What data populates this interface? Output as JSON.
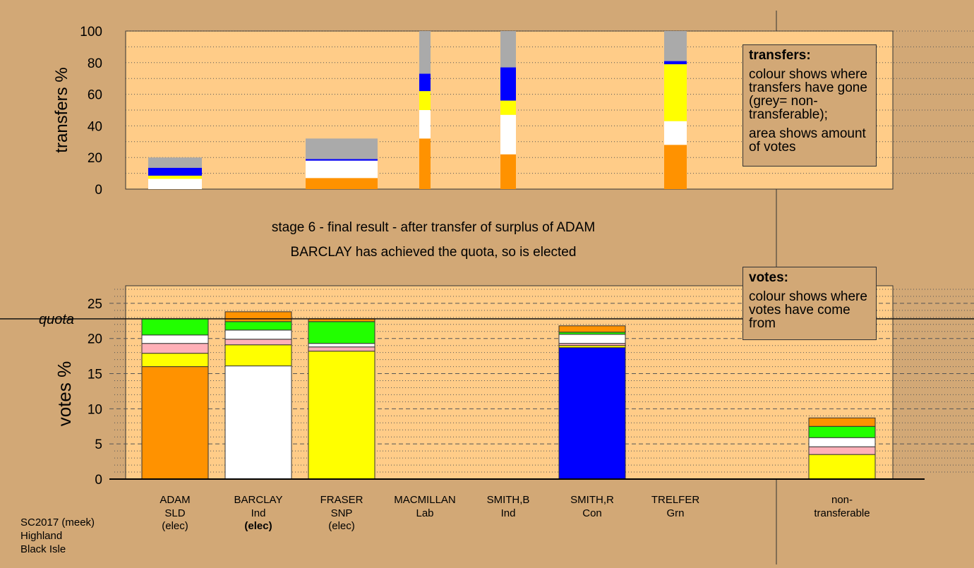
{
  "palette": {
    "background": "#d2a876",
    "plot_bg": "#ffcc88",
    "SLD": "#ff9200",
    "Ind": "#ffffff",
    "SNP": "#ffff00",
    "Con": "#0000ff",
    "Grn": "#22ff00",
    "other": "#ffb0b8",
    "nontransferable": "#aaaaaa"
  },
  "stage_info": {
    "line1": "stage 6 - final result - after transfer of surplus of ADAM",
    "line2": "BARCLAY has achieved the quota, so is elected"
  },
  "legend_transfers": {
    "title": "transfers:",
    "text1": "colour shows where transfers have gone (grey= non-transferable);",
    "text2": "area shows amount of votes"
  },
  "legend_votes": {
    "title": "votes:",
    "text1": "colour shows where votes have come from"
  },
  "footer": {
    "line1": "SC2017 (meek)",
    "line2": "Highland",
    "line3": "Black Isle"
  },
  "chart_data": [
    {
      "type": "bar",
      "name": "transfers",
      "ylabel": "transfers %",
      "ylim": [
        0,
        100
      ],
      "yticks": [
        0,
        20,
        40,
        60,
        80,
        100
      ],
      "grid": "dotted",
      "bars": [
        {
          "id": "adam",
          "segments": [
            {
              "c": "Ind",
              "v": 6.5
            },
            {
              "c": "SNP",
              "v": 2
            },
            {
              "c": "Con",
              "v": 5
            },
            {
              "c": "nontransferable",
              "v": 6.5
            }
          ]
        },
        {
          "id": "fraser",
          "segments": [
            {
              "c": "SLD",
              "v": 7
            },
            {
              "c": "Ind",
              "v": 11
            },
            {
              "c": "Con",
              "v": 1
            },
            {
              "c": "nontransferable",
              "v": 13
            }
          ]
        },
        {
          "id": "macmillan",
          "segments": [
            {
              "c": "SLD",
              "v": 32
            },
            {
              "c": "Ind",
              "v": 18
            },
            {
              "c": "SNP",
              "v": 12
            },
            {
              "c": "Con",
              "v": 11
            },
            {
              "c": "nontransferable",
              "v": 27
            }
          ]
        },
        {
          "id": "smithb",
          "segments": [
            {
              "c": "SLD",
              "v": 22
            },
            {
              "c": "Ind",
              "v": 25
            },
            {
              "c": "SNP",
              "v": 9
            },
            {
              "c": "Con",
              "v": 21
            },
            {
              "c": "nontransferable",
              "v": 23
            }
          ]
        },
        {
          "id": "trelfer",
          "segments": [
            {
              "c": "SLD",
              "v": 28
            },
            {
              "c": "Ind",
              "v": 15
            },
            {
              "c": "SNP",
              "v": 36
            },
            {
              "c": "Con",
              "v": 2
            },
            {
              "c": "nontransferable",
              "v": 19
            }
          ]
        }
      ]
    },
    {
      "type": "bar",
      "name": "votes",
      "ylabel": "votes %",
      "ylim": [
        0,
        25
      ],
      "yticks": [
        0,
        5,
        10,
        15,
        20,
        25
      ],
      "quota": 22.8,
      "quota_label": "quota",
      "grid": "dotted",
      "categories": [
        {
          "id": "adam",
          "name": "ADAM",
          "party": "SLD",
          "note": "(elec)",
          "note_bold": false,
          "segments": [
            {
              "c": "SLD",
              "v": 16.0
            },
            {
              "c": "SNP",
              "v": 1.9
            },
            {
              "c": "other",
              "v": 1.4
            },
            {
              "c": "Ind",
              "v": 1.2
            },
            {
              "c": "Grn",
              "v": 2.3
            }
          ]
        },
        {
          "id": "barclay",
          "name": "BARCLAY",
          "party": "Ind",
          "note": "(elec)",
          "note_bold": true,
          "segments": [
            {
              "c": "Ind",
              "v": 16.1
            },
            {
              "c": "SNP",
              "v": 3.0
            },
            {
              "c": "other",
              "v": 0.8
            },
            {
              "c": "Ind",
              "v": 1.3
            },
            {
              "c": "Grn",
              "v": 1.2
            },
            {
              "c": "SLD",
              "v": 1.4
            }
          ]
        },
        {
          "id": "fraser",
          "name": "FRASER",
          "party": "SNP",
          "note": "(elec)",
          "note_bold": false,
          "segments": [
            {
              "c": "SNP",
              "v": 18.2
            },
            {
              "c": "other",
              "v": 0.6
            },
            {
              "c": "Ind",
              "v": 0.5
            },
            {
              "c": "Grn",
              "v": 3.1
            },
            {
              "c": "SLD",
              "v": 0.4
            }
          ]
        },
        {
          "id": "macmillan",
          "name": "MACMILLAN",
          "party": "Lab",
          "note": "",
          "note_bold": false,
          "segments": []
        },
        {
          "id": "smithb",
          "name": "SMITH,B",
          "party": "Ind",
          "note": "",
          "note_bold": false,
          "segments": []
        },
        {
          "id": "smithr",
          "name": "SMITH,R",
          "party": "Con",
          "note": "",
          "note_bold": false,
          "segments": [
            {
              "c": "Con",
              "v": 18.7
            },
            {
              "c": "SNP",
              "v": 0.3
            },
            {
              "c": "other",
              "v": 0.3
            },
            {
              "c": "Ind",
              "v": 1.3
            },
            {
              "c": "Grn",
              "v": 0.3
            },
            {
              "c": "SLD",
              "v": 0.9
            }
          ]
        },
        {
          "id": "trelfer",
          "name": "TRELFER",
          "party": "Grn",
          "note": "",
          "note_bold": false,
          "segments": []
        },
        {
          "id": "nontransferable",
          "name": "non-",
          "party": "transferable",
          "note": "",
          "note_bold": false,
          "segments": [
            {
              "c": "SNP",
              "v": 3.5
            },
            {
              "c": "other",
              "v": 1.1
            },
            {
              "c": "Ind",
              "v": 1.3
            },
            {
              "c": "Grn",
              "v": 1.6
            },
            {
              "c": "SLD",
              "v": 1.2
            }
          ]
        }
      ]
    }
  ]
}
